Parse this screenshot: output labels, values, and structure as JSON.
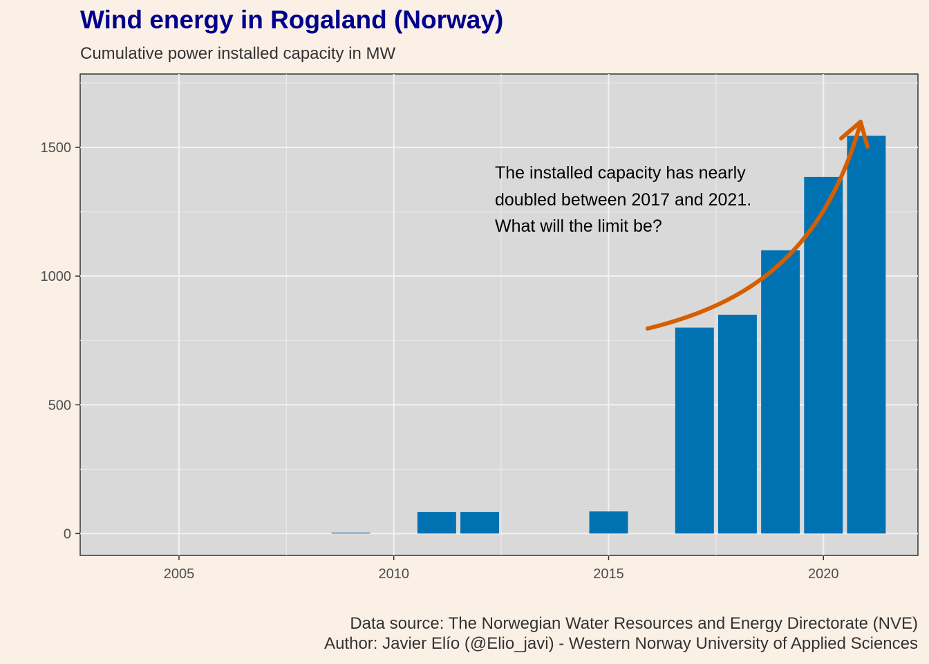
{
  "chart_data": {
    "type": "bar",
    "title": "Wind energy in Rogaland (Norway)",
    "subtitle": "Cumulative power installed capacity in MW",
    "xlabel": "",
    "ylabel": "",
    "x": [
      2009,
      2011,
      2012,
      2015,
      2017,
      2018,
      2019,
      2020,
      2021
    ],
    "values": [
      3,
      84,
      84,
      86,
      800,
      850,
      1100,
      1385,
      1545
    ],
    "xlim": [
      2002.7,
      2022.2
    ],
    "ylim": [
      -85,
      1785
    ],
    "x_ticks": [
      2005,
      2010,
      2015,
      2020
    ],
    "y_ticks": [
      0,
      500,
      1000,
      1500
    ],
    "grid": true,
    "bar_color": "#0072B2",
    "arrow_color": "#D55E00",
    "panel_background": "#D9D9D9",
    "page_background": "#FAF0E6",
    "annotation": [
      "The installed capacity has nearly",
      "doubled between 2017 and 2021.",
      "What will the limit be?"
    ],
    "caption": [
      "Data source: The Norwegian Water Resources and Energy Directorate (NVE)",
      "Author: Javier Elío (@Elio_javi) - Western Norway University of Applied Sciences"
    ]
  }
}
